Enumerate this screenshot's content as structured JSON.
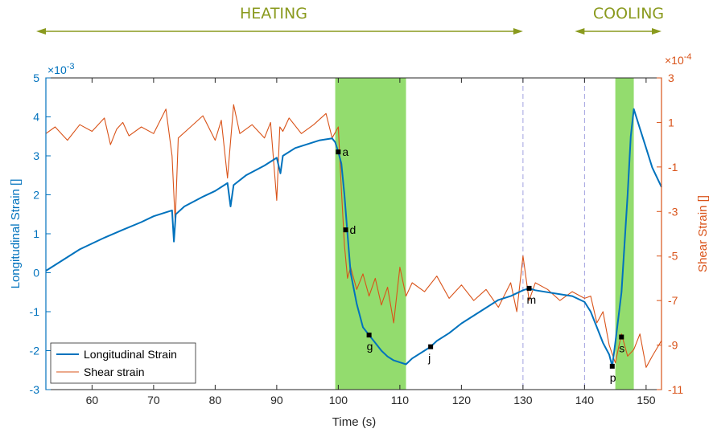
{
  "chart_data": {
    "type": "line",
    "title": "",
    "xlabel": "Time (s)",
    "ylabel_left": "Longitudinal Strain []",
    "ylabel_right": "Shear Strain []",
    "left_exponent": "×10",
    "left_exponent_power": "-3",
    "right_exponent": "×10",
    "right_exponent_power": "-4",
    "xlim": [
      52.5,
      152.5
    ],
    "ylim_left": [
      -3,
      5
    ],
    "ylim_right": [
      -11,
      3
    ],
    "x_ticks": [
      60,
      70,
      80,
      90,
      100,
      110,
      120,
      130,
      140,
      150
    ],
    "x_tick_labels": [
      "60",
      "70",
      "80",
      "90",
      "100",
      "110",
      "120",
      "130",
      "140",
      "150"
    ],
    "y_left_ticks": [
      -3,
      -2,
      -1,
      0,
      1,
      2,
      3,
      4,
      5
    ],
    "y_left_tick_labels": [
      "-3",
      "-2",
      "-1",
      "0",
      "1",
      "2",
      "3",
      "4",
      "5"
    ],
    "y_right_ticks": [
      -11,
      -9,
      -7,
      -5,
      -3,
      -1,
      1,
      3
    ],
    "y_right_tick_labels": [
      "-11",
      "-9",
      "-7",
      "-5",
      "-3",
      "-1",
      "1",
      "3"
    ],
    "phases": [
      {
        "label": "HEATING",
        "x_start": 52.5,
        "x_end": 130
      },
      {
        "label": "COOLING",
        "x_start": 140,
        "x_end": 152.5
      }
    ],
    "shaded_regions": [
      {
        "x_start": 99.5,
        "x_end": 111
      },
      {
        "x_start": 145,
        "x_end": 148
      }
    ],
    "vertical_lines": [
      130,
      140
    ],
    "legend": {
      "placement": "bottom-left",
      "entries": [
        "Longitudinal Strain",
        "Shear strain"
      ]
    },
    "colors": {
      "longitudinal": "#0072bd",
      "shear": "#d95319",
      "phase": "#8a9a1e",
      "shade": "#93dc6e",
      "vline": "#a0a0e0"
    },
    "series": [
      {
        "name": "Longitudinal Strain",
        "axis": "left",
        "x": [
          52.5,
          55,
          58,
          60,
          62,
          65,
          68,
          70,
          72,
          73,
          73.3,
          73.6,
          75,
          78,
          80,
          82,
          82.5,
          83,
          85,
          88,
          90,
          90.6,
          91,
          93,
          95,
          97,
          99,
          99.5,
          100,
          100.5,
          101,
          101.5,
          102,
          103,
          104,
          105,
          106,
          107,
          108,
          109,
          110,
          111,
          112,
          114,
          115,
          116,
          118,
          120,
          122,
          124,
          126,
          128,
          130,
          131,
          132,
          134,
          136,
          138,
          140,
          141,
          142,
          143,
          144,
          144.5,
          145,
          146,
          147,
          147.5,
          148,
          149,
          150,
          151,
          152.5
        ],
        "y": [
          0.05,
          0.3,
          0.6,
          0.75,
          0.9,
          1.1,
          1.3,
          1.45,
          1.55,
          1.6,
          0.8,
          1.5,
          1.7,
          1.95,
          2.1,
          2.3,
          1.7,
          2.25,
          2.5,
          2.75,
          2.95,
          2.55,
          3.0,
          3.2,
          3.3,
          3.4,
          3.45,
          3.35,
          3.1,
          2.8,
          2.0,
          1.0,
          0.0,
          -0.8,
          -1.4,
          -1.6,
          -1.8,
          -2.0,
          -2.15,
          -2.25,
          -2.3,
          -2.35,
          -2.2,
          -2.0,
          -1.9,
          -1.75,
          -1.55,
          -1.3,
          -1.1,
          -0.9,
          -0.7,
          -0.6,
          -0.45,
          -0.4,
          -0.45,
          -0.5,
          -0.55,
          -0.6,
          -0.75,
          -1.0,
          -1.4,
          -1.8,
          -2.1,
          -2.4,
          -1.8,
          -0.5,
          2.0,
          3.5,
          4.2,
          3.7,
          3.2,
          2.7,
          2.2
        ]
      },
      {
        "name": "Shear strain",
        "axis": "right",
        "x": [
          52.5,
          54,
          56,
          58,
          60,
          62,
          63,
          64,
          65,
          66,
          68,
          70,
          72,
          73,
          73.5,
          74,
          76,
          78,
          80,
          81,
          82,
          83,
          84,
          86,
          88,
          89,
          90,
          90.5,
          91,
          92,
          94,
          96,
          98,
          99,
          100,
          100.5,
          101,
          101.5,
          102,
          103,
          104,
          105,
          106,
          107,
          108,
          109,
          110,
          111,
          112,
          114,
          116,
          118,
          120,
          122,
          124,
          126,
          128,
          129,
          130,
          131,
          132,
          134,
          136,
          138,
          140,
          141,
          142,
          143,
          144,
          145,
          146,
          147,
          148,
          149,
          150,
          151,
          152.5
        ],
        "y": [
          0.5,
          0.8,
          0.2,
          0.9,
          0.6,
          1.2,
          0.0,
          0.7,
          1.0,
          0.4,
          0.8,
          0.5,
          1.6,
          -0.5,
          -3.5,
          0.3,
          0.8,
          1.3,
          0.2,
          1.1,
          -1.5,
          1.8,
          0.5,
          0.9,
          0.3,
          1.0,
          -2.5,
          0.8,
          0.6,
          1.2,
          0.5,
          0.9,
          1.4,
          0.3,
          0.8,
          -2.0,
          -4.5,
          -6.0,
          -5.5,
          -6.5,
          -5.8,
          -6.8,
          -6.0,
          -7.2,
          -6.4,
          -8.0,
          -5.5,
          -6.8,
          -6.2,
          -6.6,
          -5.9,
          -6.9,
          -6.3,
          -7.0,
          -6.5,
          -7.3,
          -6.2,
          -7.5,
          -5.0,
          -7.0,
          -6.2,
          -6.5,
          -7.0,
          -6.6,
          -6.9,
          -6.8,
          -8.0,
          -7.5,
          -9.0,
          -9.8,
          -8.5,
          -9.5,
          -9.2,
          -8.5,
          -10.0,
          -9.5,
          -8.8
        ]
      }
    ],
    "annotations": [
      {
        "label": "a",
        "x": 100,
        "y": 3.1
      },
      {
        "label": "d",
        "x": 101.2,
        "y": 1.1
      },
      {
        "label": "g",
        "x": 105,
        "y": -1.6
      },
      {
        "label": "j",
        "x": 115,
        "y": -1.9
      },
      {
        "label": "m",
        "x": 131,
        "y": -0.4
      },
      {
        "label": "p",
        "x": 144.5,
        "y": -2.4
      },
      {
        "label": "s",
        "x": 146,
        "y": -1.65
      }
    ]
  }
}
